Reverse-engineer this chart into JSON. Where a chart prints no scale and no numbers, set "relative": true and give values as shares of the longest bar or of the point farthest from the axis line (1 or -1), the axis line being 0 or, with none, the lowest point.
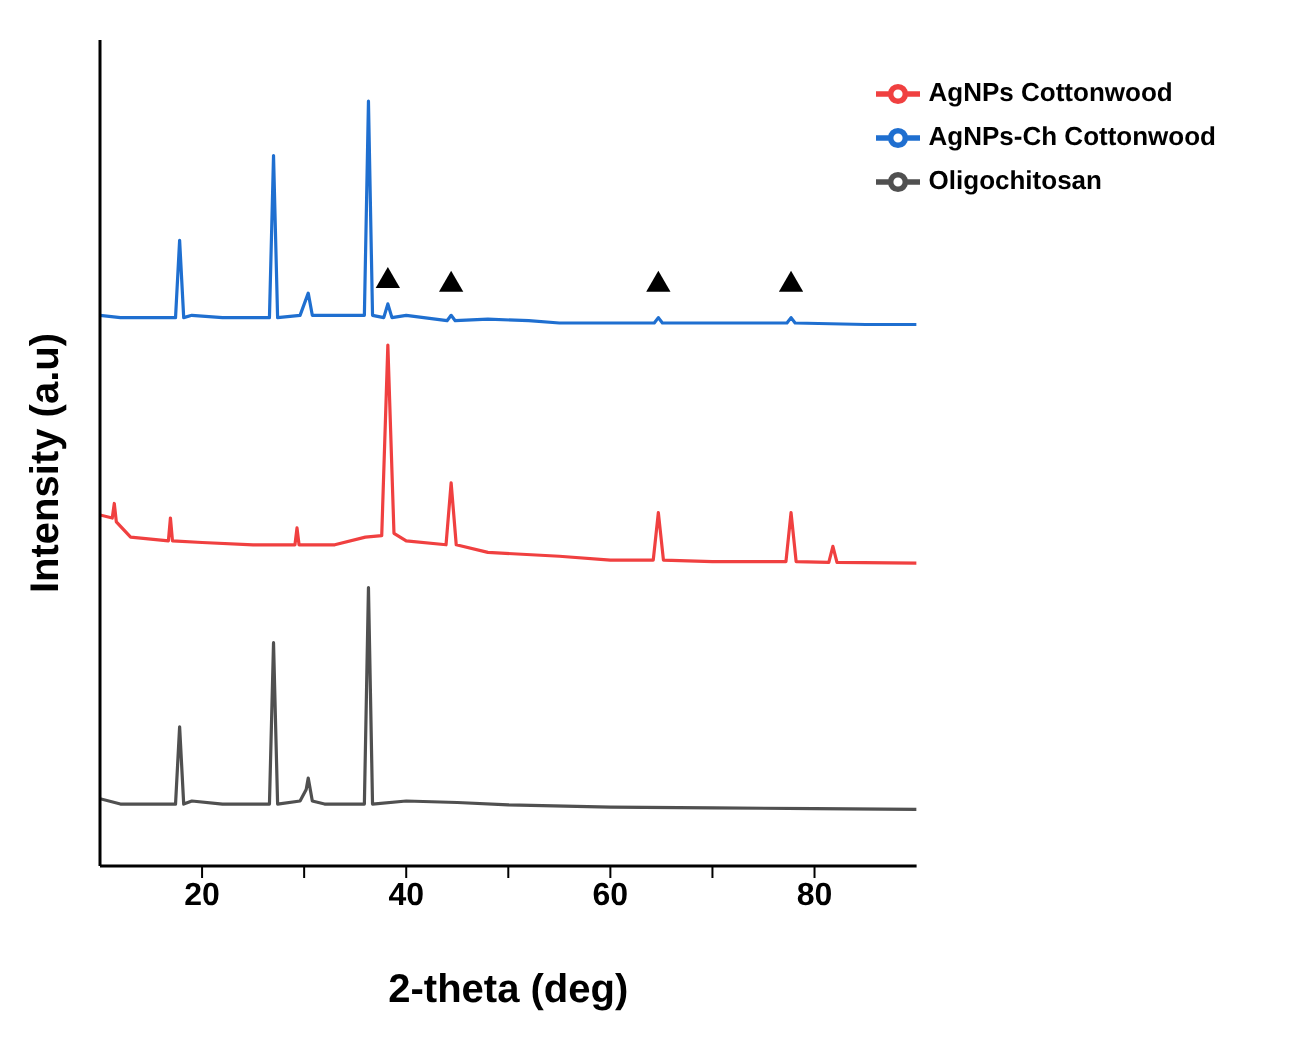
{
  "chart_data": {
    "type": "line",
    "xlabel": "2-theta (deg)",
    "ylabel": "Intensity (a.u)",
    "relative": true,
    "xlim": [
      10,
      90
    ],
    "xticks": [
      20,
      {
        "value": 30,
        "label": null
      },
      40,
      {
        "value": 50,
        "label": null
      },
      60,
      {
        "value": 70,
        "label": null
      },
      80
    ],
    "legend": "top right",
    "grid": false,
    "marker": "none",
    "line_style": "solid",
    "series": [
      {
        "name": "AgNPs-Ch Cottonwood",
        "color": "#1f6fd0",
        "x": [
          10,
          12,
          17.4,
          17.8,
          18.2,
          19,
          22,
          26.6,
          27.0,
          27.4,
          29.6,
          30.4,
          30.8,
          32,
          35.9,
          36.3,
          36.7,
          37.8,
          38.2,
          38.6,
          40,
          44.0,
          44.4,
          44.8,
          48,
          52,
          55,
          64.3,
          64.7,
          65.1,
          70,
          77.3,
          77.7,
          78.1,
          85,
          90
        ],
        "values": [
          0.72,
          0.717,
          0.717,
          0.818,
          0.717,
          0.72,
          0.717,
          0.717,
          0.929,
          0.717,
          0.72,
          0.749,
          0.72,
          0.72,
          0.72,
          1,
          0.72,
          0.717,
          0.735,
          0.717,
          0.72,
          0.713,
          0.72,
          0.713,
          0.715,
          0.713,
          0.71,
          0.71,
          0.717,
          0.71,
          0.71,
          0.71,
          0.717,
          0.71,
          0.708,
          0.708
        ]
      },
      {
        "name": "AgNPs Cottonwood",
        "color": "#f04040",
        "x": [
          10,
          11.2,
          11.4,
          11.6,
          13,
          16.7,
          16.9,
          17.1,
          20,
          25,
          29.1,
          29.3,
          29.5,
          33,
          36,
          37.6,
          38.2,
          38.8,
          40,
          43.9,
          44.4,
          44.9,
          48,
          55,
          60,
          64.2,
          64.7,
          65.2,
          70,
          77.2,
          77.7,
          78.2,
          81.4,
          81.8,
          82.2,
          90
        ],
        "values": [
          0.459,
          0.455,
          0.474,
          0.45,
          0.43,
          0.425,
          0.455,
          0.425,
          0.423,
          0.42,
          0.42,
          0.442,
          0.42,
          0.42,
          0.43,
          0.432,
          0.681,
          0.435,
          0.425,
          0.42,
          0.501,
          0.42,
          0.41,
          0.405,
          0.4,
          0.4,
          0.462,
          0.4,
          0.398,
          0.398,
          0.462,
          0.398,
          0.397,
          0.418,
          0.397,
          0.396
        ]
      },
      {
        "name": "Oligochitosan",
        "color": "#505050",
        "x": [
          10,
          12,
          17.4,
          17.8,
          18.2,
          19,
          22,
          26.6,
          27.0,
          27.4,
          29.6,
          30.2,
          30.4,
          30.8,
          32,
          35.9,
          36.3,
          36.7,
          40,
          45,
          50,
          60,
          70,
          80,
          90
        ],
        "values": [
          0.088,
          0.081,
          0.081,
          0.182,
          0.081,
          0.085,
          0.081,
          0.081,
          0.292,
          0.081,
          0.085,
          0.1,
          0.115,
          0.085,
          0.081,
          0.081,
          0.364,
          0.081,
          0.085,
          0.083,
          0.08,
          0.077,
          0.076,
          0.075,
          0.074
        ]
      },
      {
        "type": "scatter",
        "marker": "triangle",
        "color": "#000000",
        "x": [
          38.2,
          44.4,
          64.7,
          77.7
        ],
        "values": [
          0.765,
          0.76,
          0.76,
          0.76
        ]
      }
    ]
  }
}
